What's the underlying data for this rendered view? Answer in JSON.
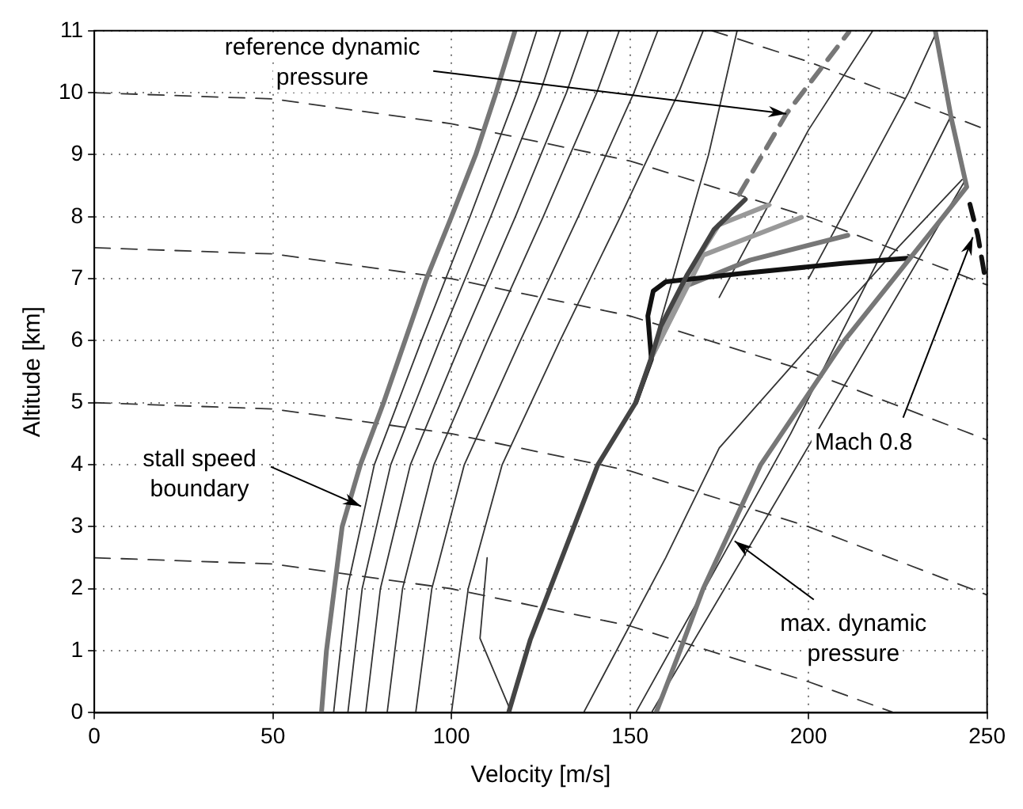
{
  "chart_data": {
    "type": "line",
    "xlabel": "Velocity [m/s]",
    "ylabel": "Altitude [km]",
    "xlim": [
      0,
      250
    ],
    "ylim": [
      0,
      11
    ],
    "xticks": [
      0,
      50,
      100,
      150,
      200,
      250
    ],
    "yticks": [
      0,
      1,
      2,
      3,
      4,
      5,
      6,
      7,
      8,
      9,
      10,
      11
    ],
    "grid": true,
    "legend": false,
    "marker": "none",
    "annotations": [
      {
        "text": "reference dynamic\npressure",
        "x": 193.8,
        "y": 9.66
      },
      {
        "text": "stall speed\nboundary",
        "x": 74.7,
        "y": 3.33
      },
      {
        "text": "Mach 0.8",
        "x": 246,
        "y": 7.67
      },
      {
        "text": "max. dynamic\npressure",
        "x": 179.3,
        "y": 2.77
      }
    ],
    "series": [
      {
        "color": "#777777",
        "x": [
          63.6,
          65,
          67.2,
          69.4,
          74.5,
          81,
          87,
          93,
          100,
          106.8,
          112.5,
          117.8
        ],
        "values": [
          0,
          1,
          2,
          3,
          4,
          5,
          6,
          7,
          8,
          9,
          10,
          11
        ]
      },
      {
        "color": "#777777",
        "x": [
          157.3,
          164,
          170.5,
          186.6,
          210,
          237.7,
          244.3,
          240,
          235.5
        ],
        "values": [
          0,
          1,
          2,
          4,
          6,
          8,
          8.48,
          9.58,
          11
        ]
      },
      {
        "color": "#777777",
        "line_style": "dashed",
        "x": [
          180.6,
          193.8,
          211.3
        ],
        "values": [
          8.36,
          9.66,
          10.98
        ]
      },
      {
        "color": "#111111",
        "line_style": "dashed",
        "x": [
          245.2,
          247.4,
          249.6
        ],
        "values": [
          8.2,
          7.7,
          6.96
        ]
      },
      {
        "color": "#444444",
        "x": [
          116,
          122.1,
          141,
          151.6,
          156,
          158.6,
          166,
          173.5,
          182.3
        ],
        "values": [
          0,
          1.18,
          4,
          5,
          5.73,
          6.23,
          7.06,
          7.79,
          8.28
        ]
      },
      {
        "color": "#111111",
        "x": [
          151.6,
          156,
          155,
          156.5,
          160,
          180.6,
          210,
          227.6
        ],
        "values": [
          5,
          5.7,
          6.4,
          6.8,
          6.95,
          7.08,
          7.25,
          7.33
        ]
      },
      {
        "color": "#999999",
        "x": [
          156,
          166,
          174.9,
          188.9
        ],
        "values": [
          5.73,
          7.06,
          7.87,
          8.19
        ]
      },
      {
        "color": "#999999",
        "x": [
          156,
          170.5,
          198
        ],
        "values": [
          5.73,
          7.38,
          7.99
        ]
      },
      {
        "color": "#777777",
        "x": [
          156,
          166,
          183.6,
          211
        ],
        "values": [
          5.73,
          6.89,
          7.3,
          7.7
        ]
      },
      {
        "color": "#333333",
        "x": [
          67,
          70.8,
          78.4,
          91.6,
          105.2,
          118.3,
          123.9
        ],
        "values": [
          0,
          2,
          4,
          6,
          8,
          10,
          11
        ]
      },
      {
        "color": "#333333",
        "x": [
          71,
          75,
          83,
          96.7,
          111,
          124.8,
          130.6
        ],
        "values": [
          0,
          2,
          4,
          6,
          8,
          10,
          11
        ]
      },
      {
        "color": "#333333",
        "x": [
          76,
          80.1,
          88.5,
          102.9,
          117.9,
          132.2,
          138.3
        ],
        "values": [
          0,
          2,
          4,
          6,
          8,
          10,
          11
        ]
      },
      {
        "color": "#333333",
        "x": [
          82,
          86.3,
          95.1,
          110.1,
          125.7,
          140.7,
          147
        ],
        "values": [
          0,
          2,
          4,
          6,
          8,
          10,
          11
        ]
      },
      {
        "color": "#333333",
        "x": [
          90,
          94.5,
          103.6,
          119.3,
          135.5,
          151.1,
          157.8
        ],
        "values": [
          0,
          2,
          4,
          6,
          8,
          10,
          11
        ]
      },
      {
        "color": "#333333",
        "x": [
          100,
          104.7,
          114.2,
          130.4,
          147.3,
          163.6,
          170.5
        ],
        "values": [
          0,
          2,
          4,
          6,
          8,
          10,
          11
        ]
      },
      {
        "color": "#333333",
        "x": [
          137,
          160,
          175,
          200,
          225,
          243
        ],
        "values": [
          0,
          2.5,
          4.27,
          5.9,
          7.5,
          8.6
        ]
      },
      {
        "color": "#333333",
        "x": [
          151.6,
          195,
          239.5
        ],
        "values": [
          0,
          4.5,
          9.58
        ]
      },
      {
        "color": "#333333",
        "x": [
          156,
          200,
          244
        ],
        "values": [
          0,
          4.3,
          8.6
        ]
      },
      {
        "color": "#333333",
        "x": [
          158,
          172,
          180
        ],
        "values": [
          6.2,
          9,
          11
        ]
      },
      {
        "color": "#333333",
        "x": [
          175,
          200,
          218
        ],
        "values": [
          6.7,
          9.4,
          11
        ]
      },
      {
        "color": "#333333",
        "x": [
          200,
          228,
          236
        ],
        "values": [
          7,
          10,
          11
        ]
      },
      {
        "color": "#333333",
        "x": [
          116.8,
          108,
          110
        ],
        "values": [
          0,
          1.2,
          2.5
        ]
      },
      {
        "color": "#333333",
        "line_style": "dashed",
        "x": [
          173,
          200,
          250
        ],
        "values": [
          11,
          10.5,
          9.4
        ]
      },
      {
        "color": "#333333",
        "line_style": "dashed",
        "x": [
          0,
          50,
          100,
          150,
          200,
          250
        ],
        "values": [
          10,
          9.9,
          9.5,
          8.9,
          8,
          6.9
        ]
      },
      {
        "color": "#333333",
        "line_style": "dashed",
        "x": [
          0,
          50,
          100,
          150,
          200,
          250
        ],
        "values": [
          7.5,
          7.4,
          7,
          6.4,
          5.5,
          4.4
        ]
      },
      {
        "color": "#333333",
        "line_style": "dashed",
        "x": [
          0,
          50,
          100,
          150,
          200,
          250
        ],
        "values": [
          5,
          4.9,
          4.5,
          3.9,
          3,
          1.9
        ]
      },
      {
        "color": "#333333",
        "line_style": "dashed",
        "x": [
          0,
          50,
          100,
          150,
          200,
          224
        ],
        "values": [
          2.5,
          2.4,
          2,
          1.4,
          0.5,
          0
        ]
      }
    ]
  }
}
